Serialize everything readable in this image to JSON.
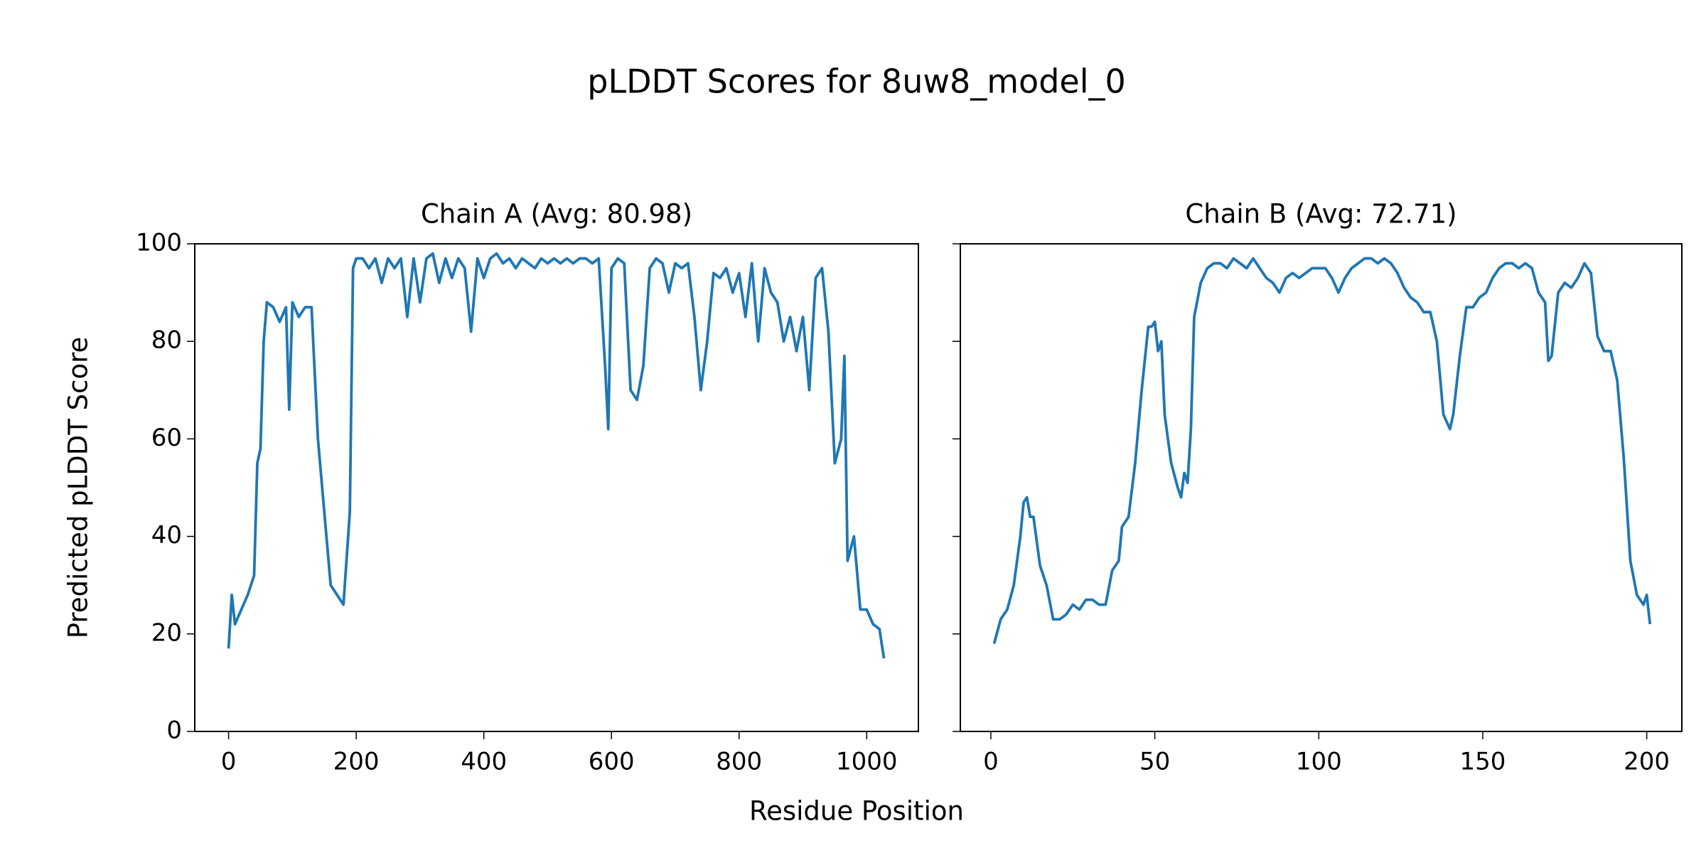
{
  "title": "pLDDT Scores for 8uw8_model_0",
  "x_label": "Residue Position",
  "y_label": "Predicted pLDDT Score",
  "chart_data": [
    {
      "type": "line",
      "title": "Chain A (Avg: 80.98)",
      "x": [
        0,
        5,
        10,
        20,
        30,
        40,
        45,
        50,
        55,
        60,
        70,
        80,
        90,
        95,
        100,
        110,
        120,
        130,
        140,
        150,
        160,
        170,
        180,
        190,
        195,
        200,
        210,
        220,
        230,
        240,
        250,
        260,
        270,
        280,
        290,
        300,
        310,
        320,
        330,
        340,
        350,
        360,
        370,
        380,
        390,
        400,
        410,
        420,
        430,
        440,
        450,
        460,
        470,
        480,
        490,
        500,
        510,
        520,
        530,
        540,
        550,
        560,
        570,
        580,
        590,
        595,
        600,
        610,
        620,
        630,
        640,
        650,
        660,
        670,
        680,
        690,
        700,
        710,
        720,
        730,
        740,
        750,
        760,
        770,
        780,
        790,
        800,
        810,
        820,
        830,
        840,
        850,
        860,
        870,
        880,
        890,
        900,
        910,
        920,
        930,
        940,
        950,
        960,
        965,
        970,
        980,
        990,
        1000,
        1010,
        1020,
        1027
      ],
      "series": [
        {
          "name": "Chain A",
          "color": "#1f77b4",
          "values": [
            17,
            28,
            22,
            25,
            28,
            32,
            55,
            58,
            80,
            88,
            87,
            84,
            87,
            66,
            88,
            85,
            87,
            87,
            60,
            45,
            30,
            28,
            26,
            45,
            95,
            97,
            97,
            95,
            97,
            92,
            97,
            95,
            97,
            85,
            97,
            88,
            97,
            98,
            92,
            97,
            93,
            97,
            95,
            82,
            97,
            93,
            97,
            98,
            96,
            97,
            95,
            97,
            96,
            95,
            97,
            96,
            97,
            96,
            97,
            96,
            97,
            97,
            96,
            97,
            75,
            62,
            95,
            97,
            96,
            70,
            68,
            75,
            95,
            97,
            96,
            90,
            96,
            95,
            96,
            85,
            70,
            80,
            94,
            93,
            95,
            90,
            94,
            85,
            96,
            80,
            95,
            90,
            88,
            80,
            85,
            78,
            85,
            70,
            93,
            95,
            82,
            55,
            60,
            77,
            35,
            40,
            25,
            25,
            22,
            21,
            15
          ]
        }
      ],
      "xlim": [
        -53,
        1081
      ],
      "xticks": [
        0,
        200,
        400,
        600,
        800,
        1000
      ],
      "ylim": [
        0,
        100
      ],
      "yticks": [
        0,
        20,
        40,
        60,
        80,
        100
      ],
      "ytick_labels": true
    },
    {
      "type": "line",
      "title": "Chain B (Avg: 72.71)",
      "x": [
        1,
        3,
        5,
        7,
        9,
        10,
        11,
        12,
        13,
        15,
        17,
        19,
        21,
        23,
        25,
        27,
        29,
        31,
        33,
        35,
        37,
        39,
        40,
        42,
        44,
        46,
        48,
        49,
        50,
        51,
        52,
        53,
        55,
        57,
        58,
        59,
        60,
        61,
        62,
        64,
        66,
        68,
        70,
        72,
        74,
        76,
        78,
        80,
        82,
        84,
        86,
        88,
        90,
        92,
        94,
        96,
        98,
        100,
        102,
        104,
        106,
        108,
        110,
        112,
        114,
        116,
        118,
        120,
        122,
        124,
        126,
        128,
        130,
        132,
        134,
        136,
        138,
        140,
        141,
        143,
        145,
        147,
        149,
        151,
        153,
        155,
        157,
        159,
        161,
        163,
        165,
        167,
        169,
        170,
        171,
        173,
        175,
        177,
        179,
        181,
        183,
        185,
        187,
        189,
        191,
        193,
        195,
        197,
        199,
        200,
        201
      ],
      "series": [
        {
          "name": "Chain B",
          "color": "#1f77b4",
          "values": [
            18,
            23,
            25,
            30,
            40,
            47,
            48,
            44,
            44,
            34,
            30,
            23,
            23,
            24,
            26,
            25,
            27,
            27,
            26,
            26,
            33,
            35,
            42,
            44,
            55,
            70,
            83,
            83,
            84,
            78,
            80,
            65,
            55,
            50,
            48,
            53,
            51,
            62,
            85,
            92,
            95,
            96,
            96,
            95,
            97,
            96,
            95,
            97,
            95,
            93,
            92,
            90,
            93,
            94,
            93,
            94,
            95,
            95,
            95,
            93,
            90,
            93,
            95,
            96,
            97,
            97,
            96,
            97,
            96,
            94,
            91,
            89,
            88,
            86,
            86,
            80,
            65,
            62,
            65,
            77,
            87,
            87,
            89,
            90,
            93,
            95,
            96,
            96,
            95,
            96,
            95,
            90,
            88,
            76,
            77,
            90,
            92,
            91,
            93,
            96,
            94,
            81,
            78,
            78,
            72,
            56,
            35,
            28,
            26,
            28,
            22
          ]
        }
      ],
      "xlim": [
        -9.3,
        210.7
      ],
      "xticks": [
        0,
        50,
        100,
        150,
        200
      ],
      "ylim": [
        0,
        100
      ],
      "yticks": [
        0,
        20,
        40,
        60,
        80,
        100
      ],
      "ytick_labels": false
    }
  ]
}
